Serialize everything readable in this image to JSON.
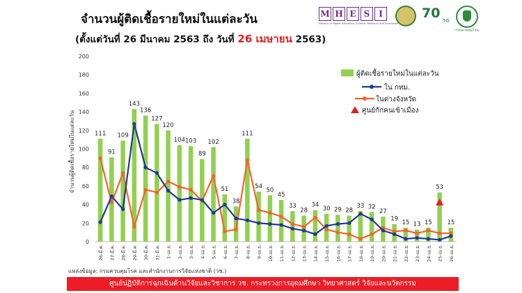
{
  "header": {
    "title": "จำนวนผู้ติดเชื้อรายใหม่ในแต่ละวัน",
    "subtitle_before": "(ตั้งแต่วันที่ 26 มีนาคม 2563 ถึง วันที่",
    "subtitle_highlight": "26 เมษายน",
    "subtitle_after": "2563)"
  },
  "logos": {
    "mhesi_letters": [
      "M",
      "H",
      "E",
      "S",
      "I"
    ],
    "mhesi_caption": "Ministry of Higher Education, Science, Research and Innovation",
    "ninety_text": "70",
    "five_g": "5G",
    "moph_caption": "กรมควบคุมโรค"
  },
  "chart_data": {
    "type": "bar",
    "categories": [
      "26-มี.ค.",
      "27-มี.ค.",
      "28-มี.ค.",
      "29-มี.ค.",
      "30-มี.ค.",
      "31-มี.ค.",
      "1-เม.ย.",
      "2-เม.ย.",
      "3-เม.ย.",
      "4-เม.ย.",
      "5-เม.ย.",
      "6-เม.ย.",
      "7-เม.ย.",
      "8-เม.ย.",
      "9-เม.ย.",
      "10-เม.ย.",
      "11-เม.ย.",
      "12-เม.ย.",
      "13-เม.ย.",
      "14-เม.ย.",
      "15-เม.ย.",
      "16-เม.ย.",
      "17-เม.ย.",
      "18-เม.ย.",
      "19-เม.ย.",
      "20-เม.ย.",
      "21-เม.ย.",
      "22-เม.ย.",
      "23-เม.ย.",
      "24-เม.ย.",
      "25-เม.ย.",
      "26-เม.ย."
    ],
    "ylabel": "จำนวนผู้ติดเชื้อรายใหม่ในแต่ละวัน",
    "ylim": [
      0,
      200
    ],
    "yticks": [
      0,
      20,
      40,
      60,
      80,
      100,
      120,
      140,
      160,
      180,
      200
    ],
    "legend_position": "top-right",
    "series": [
      {
        "name": "ผู้ติดเชื้อรายใหม่ในแต่ละวัน",
        "kind": "bar",
        "color": "#92d050",
        "values": [
          111,
          91,
          109,
          143,
          136,
          127,
          120,
          104,
          103,
          89,
          102,
          51,
          38,
          111,
          54,
          50,
          45,
          33,
          28,
          34,
          30,
          29,
          28,
          33,
          32,
          27,
          19,
          15,
          13,
          15,
          53,
          15
        ]
      },
      {
        "name": "ใน กทม.",
        "kind": "line",
        "color": "#1f3a93",
        "values": [
          21,
          49,
          35,
          127,
          80,
          74,
          55,
          45,
          47,
          45,
          31,
          40,
          25,
          23,
          20,
          19,
          18,
          14,
          12,
          8,
          17,
          19,
          20,
          30,
          24,
          12,
          8,
          3,
          4,
          3,
          2,
          6
        ]
      },
      {
        "name": "ในต่างจังหวัด",
        "kind": "line",
        "color": "#f2652b",
        "values": [
          90,
          42,
          74,
          16,
          56,
          53,
          65,
          59,
          56,
          44,
          71,
          11,
          13,
          88,
          34,
          31,
          27,
          19,
          16,
          26,
          13,
          10,
          8,
          3,
          8,
          15,
          11,
          12,
          9,
          12,
          9,
          9
        ]
      },
      {
        "name": "ศูนย์กักคนเข้าเมือง",
        "kind": "marker",
        "color": "#e41e1e",
        "points": [
          {
            "category": "25-เม.ย.",
            "value": 42
          }
        ]
      }
    ]
  },
  "source": "แหล่งข้อมูล: กรมควบคุมโรค และสำนักงานการวิจัยแห่งชาติ (วช.)",
  "footer": "ศูนย์ปฏิบัติการฉุกเฉินด้านวิจัยและวิชาการ    วช.    กระทรวงการอุดมศึกษา วิทยาศาสตร์ วิจัยและนวัตกรรม"
}
